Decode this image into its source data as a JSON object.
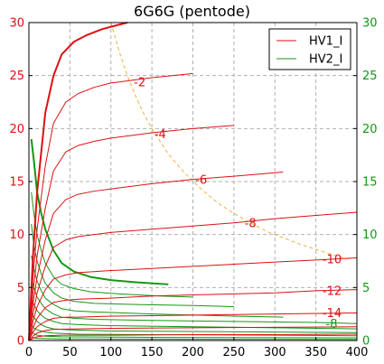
{
  "chart_data": {
    "type": "line",
    "title": "6G6G (pentode)",
    "xlabel": "",
    "ylabel": "",
    "xlim": [
      0,
      400
    ],
    "ylim": [
      0,
      30
    ],
    "y2lim": [
      0,
      30
    ],
    "x_ticks": [
      0,
      50,
      100,
      150,
      200,
      250,
      300,
      350,
      400
    ],
    "y_ticks": [
      0,
      5,
      10,
      15,
      20,
      25,
      30
    ],
    "grid": true,
    "legend_position": "top-right",
    "legend": [
      {
        "name": "HV1_I",
        "color": "#dd1111"
      },
      {
        "name": "HV2_I",
        "color": "#119911"
      }
    ],
    "colors": {
      "hv1": "#dd1111",
      "hv2": "#119911",
      "dissipation": "#f0b040",
      "left_axis": "#dd1111",
      "right_axis": "#119911",
      "grid": "#b0b0b0"
    },
    "series_hv1": [
      {
        "grid_v": "0",
        "points": [
          [
            0,
            0
          ],
          [
            5,
            8
          ],
          [
            10,
            14
          ],
          [
            20,
            21.5
          ],
          [
            30,
            25
          ],
          [
            40,
            27
          ],
          [
            55,
            28.2
          ],
          [
            70,
            28.8
          ],
          [
            90,
            29.4
          ],
          [
            120,
            30
          ]
        ]
      },
      {
        "grid_v": "-2",
        "points": [
          [
            0,
            0
          ],
          [
            5,
            6
          ],
          [
            10,
            10.5
          ],
          [
            20,
            16.5
          ],
          [
            30,
            20.5
          ],
          [
            45,
            22.5
          ],
          [
            60,
            23.3
          ],
          [
            80,
            23.9
          ],
          [
            100,
            24.3
          ],
          [
            150,
            24.8
          ],
          [
            200,
            25.2
          ]
        ]
      },
      {
        "grid_v": "-4",
        "points": [
          [
            0,
            0
          ],
          [
            5,
            4.5
          ],
          [
            10,
            8
          ],
          [
            20,
            12.5
          ],
          [
            30,
            16
          ],
          [
            45,
            17.8
          ],
          [
            60,
            18.4
          ],
          [
            80,
            18.8
          ],
          [
            100,
            19.1
          ],
          [
            150,
            19.6
          ],
          [
            200,
            20.0
          ],
          [
            250,
            20.3
          ]
        ]
      },
      {
        "grid_v": "-6",
        "points": [
          [
            0,
            0
          ],
          [
            5,
            3.5
          ],
          [
            10,
            6
          ],
          [
            20,
            9.5
          ],
          [
            30,
            12
          ],
          [
            45,
            13.3
          ],
          [
            60,
            13.8
          ],
          [
            80,
            14.1
          ],
          [
            100,
            14.3
          ],
          [
            150,
            14.8
          ],
          [
            200,
            15.2
          ],
          [
            250,
            15.5
          ],
          [
            310,
            15.9
          ]
        ]
      },
      {
        "grid_v": "-8",
        "points": [
          [
            0,
            0
          ],
          [
            5,
            2.5
          ],
          [
            10,
            4.5
          ],
          [
            20,
            7
          ],
          [
            30,
            8.8
          ],
          [
            45,
            9.5
          ],
          [
            60,
            9.8
          ],
          [
            80,
            10.0
          ],
          [
            100,
            10.2
          ],
          [
            150,
            10.5
          ],
          [
            200,
            10.8
          ],
          [
            250,
            11.1
          ],
          [
            300,
            11.5
          ],
          [
            350,
            11.8
          ],
          [
            400,
            12.1
          ]
        ]
      },
      {
        "grid_v": "-10",
        "points": [
          [
            0,
            0
          ],
          [
            5,
            1.8
          ],
          [
            10,
            3.2
          ],
          [
            20,
            4.8
          ],
          [
            30,
            5.8
          ],
          [
            45,
            6.2
          ],
          [
            60,
            6.4
          ],
          [
            100,
            6.6
          ],
          [
            150,
            6.8
          ],
          [
            200,
            7.0
          ],
          [
            250,
            7.2
          ],
          [
            300,
            7.4
          ],
          [
            350,
            7.6
          ],
          [
            400,
            7.8
          ]
        ]
      },
      {
        "grid_v": "-12",
        "points": [
          [
            0,
            0
          ],
          [
            5,
            1.2
          ],
          [
            10,
            2.1
          ],
          [
            20,
            3.1
          ],
          [
            30,
            3.6
          ],
          [
            45,
            3.8
          ],
          [
            60,
            3.9
          ],
          [
            100,
            4.0
          ],
          [
            150,
            4.2
          ],
          [
            200,
            4.3
          ],
          [
            250,
            4.4
          ],
          [
            300,
            4.5
          ],
          [
            350,
            4.7
          ],
          [
            400,
            4.8
          ]
        ]
      },
      {
        "grid_v": "-14",
        "points": [
          [
            0,
            0
          ],
          [
            5,
            0.8
          ],
          [
            10,
            1.3
          ],
          [
            20,
            1.8
          ],
          [
            30,
            2.1
          ],
          [
            45,
            2.2
          ],
          [
            60,
            2.2
          ],
          [
            100,
            2.3
          ],
          [
            200,
            2.4
          ],
          [
            300,
            2.5
          ],
          [
            400,
            2.6
          ]
        ]
      },
      {
        "grid_v": "-16",
        "points": [
          [
            0,
            0
          ],
          [
            5,
            0.4
          ],
          [
            10,
            0.7
          ],
          [
            20,
            0.95
          ],
          [
            30,
            1.05
          ],
          [
            60,
            1.1
          ],
          [
            100,
            1.15
          ],
          [
            200,
            1.2
          ],
          [
            300,
            1.25
          ],
          [
            400,
            1.3
          ]
        ]
      },
      {
        "grid_v": "-18",
        "points": [
          [
            0,
            0
          ],
          [
            5,
            0.2
          ],
          [
            10,
            0.35
          ],
          [
            20,
            0.45
          ],
          [
            40,
            0.5
          ],
          [
            100,
            0.5
          ],
          [
            200,
            0.55
          ],
          [
            300,
            0.55
          ],
          [
            400,
            0.6
          ]
        ]
      }
    ],
    "series_hv2": [
      {
        "grid_v": "0",
        "points": [
          [
            3,
            19
          ],
          [
            6,
            17
          ],
          [
            10,
            14
          ],
          [
            15,
            12
          ],
          [
            20,
            10.5
          ],
          [
            30,
            8.5
          ],
          [
            40,
            7.3
          ],
          [
            55,
            6.5
          ],
          [
            75,
            6.0
          ],
          [
            100,
            5.7
          ],
          [
            130,
            5.5
          ],
          [
            170,
            5.3
          ]
        ]
      },
      {
        "grid_v": "-2",
        "points": [
          [
            3,
            14
          ],
          [
            6,
            12
          ],
          [
            10,
            10
          ],
          [
            15,
            8.5
          ],
          [
            20,
            7.3
          ],
          [
            30,
            6.0
          ],
          [
            40,
            5.3
          ],
          [
            55,
            4.9
          ],
          [
            75,
            4.6
          ],
          [
            110,
            4.4
          ],
          [
            160,
            4.2
          ],
          [
            200,
            4.1
          ]
        ]
      },
      {
        "grid_v": "-4",
        "points": [
          [
            3,
            11
          ],
          [
            6,
            9
          ],
          [
            10,
            7.5
          ],
          [
            15,
            6.3
          ],
          [
            20,
            5.4
          ],
          [
            30,
            4.5
          ],
          [
            40,
            4.0
          ],
          [
            55,
            3.7
          ],
          [
            80,
            3.5
          ],
          [
            130,
            3.4
          ],
          [
            200,
            3.3
          ],
          [
            250,
            3.2
          ]
        ]
      },
      {
        "grid_v": "-6",
        "points": [
          [
            3,
            8
          ],
          [
            6,
            6.8
          ],
          [
            10,
            5.6
          ],
          [
            15,
            4.7
          ],
          [
            20,
            4.0
          ],
          [
            30,
            3.4
          ],
          [
            40,
            3.0
          ],
          [
            55,
            2.8
          ],
          [
            80,
            2.7
          ],
          [
            150,
            2.5
          ],
          [
            250,
            2.3
          ],
          [
            310,
            2.2
          ]
        ]
      },
      {
        "grid_v": "-8",
        "points": [
          [
            3,
            6
          ],
          [
            6,
            5
          ],
          [
            10,
            4.1
          ],
          [
            15,
            3.5
          ],
          [
            20,
            3.0
          ],
          [
            30,
            2.5
          ],
          [
            40,
            2.2
          ],
          [
            55,
            2.1
          ],
          [
            80,
            2.0
          ],
          [
            150,
            1.9
          ],
          [
            250,
            1.8
          ],
          [
            350,
            1.7
          ],
          [
            400,
            1.6
          ]
        ]
      },
      {
        "grid_v": "-10",
        "points": [
          [
            3,
            4
          ],
          [
            6,
            3.4
          ],
          [
            10,
            2.8
          ],
          [
            15,
            2.4
          ],
          [
            20,
            2.1
          ],
          [
            30,
            1.8
          ],
          [
            40,
            1.6
          ],
          [
            60,
            1.5
          ],
          [
            100,
            1.4
          ],
          [
            200,
            1.3
          ],
          [
            300,
            1.2
          ],
          [
            400,
            1.1
          ]
        ]
      },
      {
        "grid_v": "-12",
        "points": [
          [
            3,
            2.6
          ],
          [
            6,
            2.2
          ],
          [
            10,
            1.8
          ],
          [
            15,
            1.5
          ],
          [
            20,
            1.3
          ],
          [
            30,
            1.1
          ],
          [
            50,
            1.0
          ],
          [
            100,
            0.9
          ],
          [
            200,
            0.85
          ],
          [
            300,
            0.8
          ],
          [
            400,
            0.75
          ]
        ]
      },
      {
        "grid_v": "-14",
        "points": [
          [
            3,
            1.5
          ],
          [
            6,
            1.2
          ],
          [
            10,
            1.0
          ],
          [
            20,
            0.8
          ],
          [
            30,
            0.7
          ],
          [
            60,
            0.6
          ],
          [
            150,
            0.55
          ],
          [
            300,
            0.5
          ],
          [
            400,
            0.45
          ]
        ]
      },
      {
        "grid_v": "-16",
        "points": [
          [
            3,
            0.8
          ],
          [
            10,
            0.5
          ],
          [
            20,
            0.4
          ],
          [
            40,
            0.35
          ],
          [
            150,
            0.3
          ],
          [
            400,
            0.25
          ]
        ]
      },
      {
        "grid_v": "-18",
        "points": [
          [
            3,
            0.3
          ],
          [
            10,
            0.2
          ],
          [
            40,
            0.15
          ],
          [
            400,
            0.1
          ]
        ]
      }
    ],
    "dissipation_curve": [
      [
        100,
        30
      ],
      [
        110,
        27.3
      ],
      [
        120,
        25
      ],
      [
        130,
        23.1
      ],
      [
        140,
        21.4
      ],
      [
        150,
        20
      ],
      [
        170,
        17.6
      ],
      [
        190,
        15.8
      ],
      [
        210,
        14.3
      ],
      [
        230,
        13
      ],
      [
        250,
        12
      ],
      [
        270,
        11.1
      ],
      [
        290,
        10.3
      ],
      [
        310,
        9.7
      ],
      [
        330,
        9.1
      ],
      [
        350,
        8.6
      ],
      [
        370,
        8.1
      ],
      [
        390,
        7.7
      ]
    ],
    "annotations": [
      {
        "text": "-2",
        "x": 128,
        "y": 24.0,
        "color": "#dd1111"
      },
      {
        "text": "-4",
        "x": 153,
        "y": 19.1,
        "color": "#dd1111"
      },
      {
        "text": "-6",
        "x": 203,
        "y": 14.8,
        "color": "#dd1111"
      },
      {
        "text": "-8",
        "x": 263,
        "y": 10.7,
        "color": "#dd1111"
      },
      {
        "text": "-10",
        "x": 358,
        "y": 7.3,
        "color": "#dd1111"
      },
      {
        "text": "-12",
        "x": 358,
        "y": 4.3,
        "color": "#dd1111"
      },
      {
        "text": "-14",
        "x": 358,
        "y": 2.2,
        "color": "#dd1111"
      },
      {
        "text": "-8",
        "x": 362,
        "y": 1.2,
        "color": "#119911"
      }
    ]
  }
}
